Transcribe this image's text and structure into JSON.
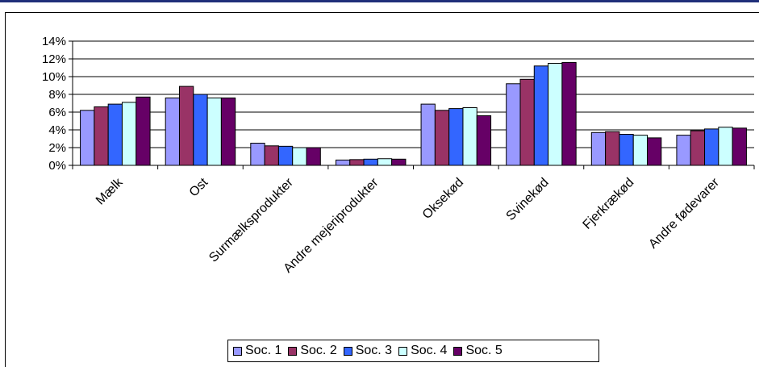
{
  "colors": {
    "soc1": "#9999ff",
    "soc2": "#993366",
    "soc3": "#3366ff",
    "soc4": "#ccffff",
    "soc5": "#660066",
    "frame_bar": "#1f2f7a"
  },
  "chart_data": {
    "type": "bar",
    "title": "",
    "xlabel": "",
    "ylabel": "",
    "ylim": [
      0,
      14
    ],
    "yticks": [
      "0%",
      "2%",
      "4%",
      "6%",
      "8%",
      "10%",
      "12%",
      "14%"
    ],
    "grid": true,
    "legend_position": "bottom",
    "categories": [
      "Mælk",
      "Ost",
      "Surmælksprodukter",
      "Andre mejeriprodukter",
      "Oksekød",
      "Svinekød",
      "Fjerkrækød",
      "Andre fødevarer"
    ],
    "series": [
      {
        "name": "Soc. 1",
        "color": "#9999ff",
        "values": [
          6.2,
          7.6,
          2.5,
          0.6,
          6.9,
          9.2,
          3.7,
          3.4
        ]
      },
      {
        "name": "Soc. 2",
        "color": "#993366",
        "values": [
          6.6,
          8.9,
          2.2,
          0.65,
          6.2,
          9.7,
          3.8,
          3.9
        ]
      },
      {
        "name": "Soc. 3",
        "color": "#3366ff",
        "values": [
          6.9,
          8.0,
          2.15,
          0.7,
          6.4,
          11.2,
          3.5,
          4.1
        ]
      },
      {
        "name": "Soc. 4",
        "color": "#ccffff",
        "values": [
          7.1,
          7.6,
          2.0,
          0.75,
          6.5,
          11.5,
          3.4,
          4.3
        ]
      },
      {
        "name": "Soc. 5",
        "color": "#660066",
        "values": [
          7.7,
          7.6,
          2.0,
          0.7,
          5.6,
          11.6,
          3.1,
          4.2
        ]
      }
    ]
  }
}
